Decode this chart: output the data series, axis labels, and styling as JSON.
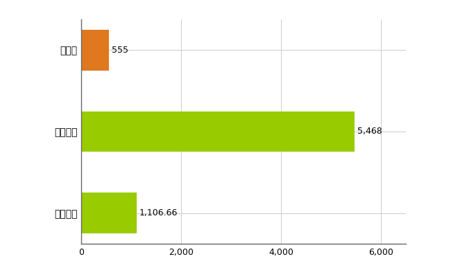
{
  "categories": [
    "全国平均",
    "全国最大",
    "富山県"
  ],
  "values": [
    1106.66,
    5468,
    555
  ],
  "bar_colors": [
    "#99cc00",
    "#99cc00",
    "#e07820"
  ],
  "bar_labels": [
    "1,106.66",
    "5,468",
    "555"
  ],
  "xlim": [
    0,
    6500
  ],
  "xticks": [
    0,
    2000,
    4000,
    6000
  ],
  "background_color": "#ffffff",
  "grid_color": "#cccccc",
  "label_fontsize": 10,
  "tick_fontsize": 9,
  "bar_height": 0.5
}
